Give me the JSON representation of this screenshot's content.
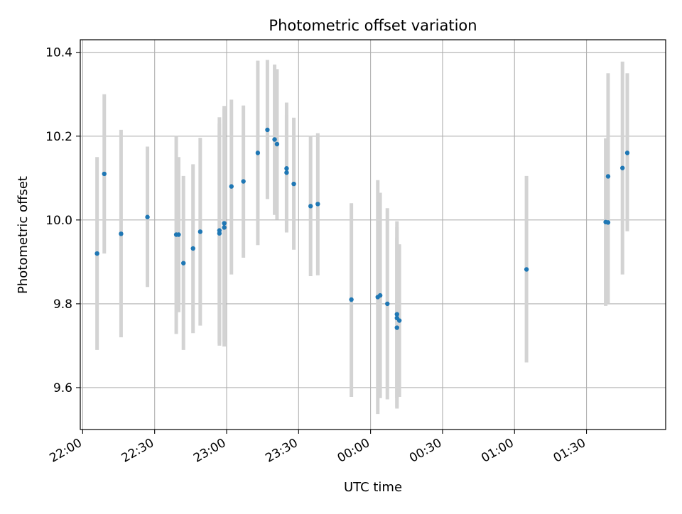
{
  "chart_data": {
    "type": "scatter",
    "title": "Photometric offset variation",
    "xlabel": "UTC time",
    "ylabel": "Photometric offset",
    "x_unit": "UTC time (HH:MM)",
    "xlim": [
      "21:59",
      "02:03"
    ],
    "ylim": [
      9.5,
      10.43
    ],
    "x_ticks": [
      "22:00",
      "22:30",
      "23:00",
      "23:30",
      "00:00",
      "00:30",
      "01:00",
      "01:30"
    ],
    "y_ticks": [
      9.6,
      9.8,
      10.0,
      10.2,
      10.4
    ],
    "grid": true,
    "legend": "none",
    "colors": {
      "point": "#1f77b4",
      "errorbar": "#d3d3d3",
      "grid": "#b0b0b0",
      "axes": "#000000"
    },
    "points": [
      {
        "time": "22:06",
        "y": 9.92,
        "ylow": 9.69,
        "yhigh": 10.15
      },
      {
        "time": "22:09",
        "y": 10.11,
        "ylow": 9.92,
        "yhigh": 10.3
      },
      {
        "time": "22:16",
        "y": 9.967,
        "ylow": 9.72,
        "yhigh": 10.215
      },
      {
        "time": "22:27",
        "y": 10.007,
        "ylow": 9.84,
        "yhigh": 10.175
      },
      {
        "time": "22:39",
        "y": 9.965,
        "ylow": 9.728,
        "yhigh": 10.2
      },
      {
        "time": "22:40",
        "y": 9.965,
        "ylow": 9.78,
        "yhigh": 10.15
      },
      {
        "time": "22:42",
        "y": 9.897,
        "ylow": 9.69,
        "yhigh": 10.105
      },
      {
        "time": "22:46",
        "y": 9.932,
        "ylow": 9.73,
        "yhigh": 10.133
      },
      {
        "time": "22:49",
        "y": 9.972,
        "ylow": 9.748,
        "yhigh": 10.196
      },
      {
        "time": "22:57",
        "y": 9.975,
        "ylow": 9.7,
        "yhigh": 10.245
      },
      {
        "time": "22:57",
        "y": 9.968,
        "ylow": 9.705,
        "yhigh": 10.23
      },
      {
        "time": "22:59",
        "y": 9.992,
        "ylow": 9.71,
        "yhigh": 10.272
      },
      {
        "time": "22:59",
        "y": 9.982,
        "ylow": 9.698,
        "yhigh": 10.266
      },
      {
        "time": "23:02",
        "y": 10.08,
        "ylow": 9.87,
        "yhigh": 10.287
      },
      {
        "time": "23:07",
        "y": 10.092,
        "ylow": 9.91,
        "yhigh": 10.273
      },
      {
        "time": "23:13",
        "y": 10.16,
        "ylow": 9.94,
        "yhigh": 10.38
      },
      {
        "time": "23:17",
        "y": 10.215,
        "ylow": 10.05,
        "yhigh": 10.382
      },
      {
        "time": "23:20",
        "y": 10.192,
        "ylow": 10.012,
        "yhigh": 10.371
      },
      {
        "time": "23:21",
        "y": 10.181,
        "ylow": 10.001,
        "yhigh": 10.36
      },
      {
        "time": "23:25",
        "y": 10.123,
        "ylow": 9.97,
        "yhigh": 10.28
      },
      {
        "time": "23:25",
        "y": 10.113,
        "ylow": 9.975,
        "yhigh": 10.25
      },
      {
        "time": "23:28",
        "y": 10.086,
        "ylow": 9.929,
        "yhigh": 10.244
      },
      {
        "time": "23:35",
        "y": 10.033,
        "ylow": 9.866,
        "yhigh": 10.2
      },
      {
        "time": "23:38",
        "y": 10.038,
        "ylow": 9.868,
        "yhigh": 10.207
      },
      {
        "time": "23:52",
        "y": 9.81,
        "ylow": 9.578,
        "yhigh": 10.04
      },
      {
        "time": "00:03",
        "y": 9.816,
        "ylow": 9.537,
        "yhigh": 10.095
      },
      {
        "time": "00:04",
        "y": 9.82,
        "ylow": 9.575,
        "yhigh": 10.065
      },
      {
        "time": "00:07",
        "y": 9.8,
        "ylow": 9.572,
        "yhigh": 10.028
      },
      {
        "time": "00:11",
        "y": 9.775,
        "ylow": 9.553,
        "yhigh": 9.997
      },
      {
        "time": "00:11",
        "y": 9.743,
        "ylow": 9.55,
        "yhigh": 9.983
      },
      {
        "time": "00:11",
        "y": 9.766,
        "ylow": 9.575,
        "yhigh": 9.958
      },
      {
        "time": "00:12",
        "y": 9.76,
        "ylow": 9.578,
        "yhigh": 9.942
      },
      {
        "time": "01:05",
        "y": 9.882,
        "ylow": 9.66,
        "yhigh": 10.105
      },
      {
        "time": "01:38",
        "y": 9.995,
        "ylow": 9.795,
        "yhigh": 10.195
      },
      {
        "time": "01:39",
        "y": 9.994,
        "ylow": 9.8,
        "yhigh": 10.188
      },
      {
        "time": "01:39",
        "y": 10.104,
        "ylow": 9.86,
        "yhigh": 10.35
      },
      {
        "time": "01:45",
        "y": 10.124,
        "ylow": 9.87,
        "yhigh": 10.378
      },
      {
        "time": "01:47",
        "y": 10.16,
        "ylow": 9.973,
        "yhigh": 10.35
      }
    ]
  }
}
